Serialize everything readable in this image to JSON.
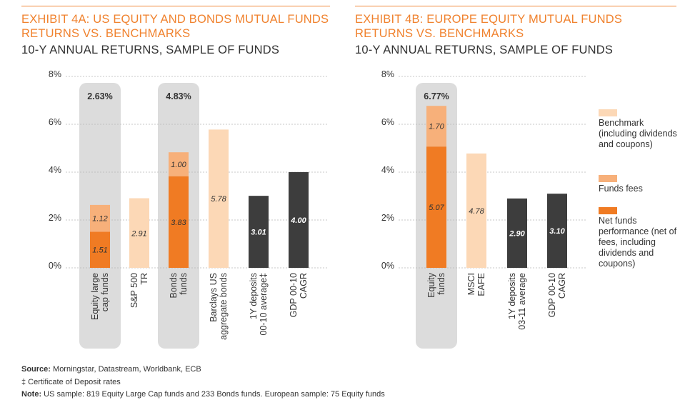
{
  "colors": {
    "benchmark": "#fcd8b6",
    "fees": "#f7b07a",
    "net": "#f07b23",
    "dark": "#3d3d3d",
    "highlight": "#dcdcdc",
    "title": "#f0822e"
  },
  "left": {
    "title_line1": "EXHIBIT 4A: US EQUITY AND BONDS MUTUAL FUNDS",
    "title_line2": "RETURNS VS. BENCHMARKS",
    "subtitle": "10-Y ANNUAL RETURNS, SAMPLE OF FUNDS"
  },
  "right": {
    "title_line1": "EXHIBIT 4B: EUROPE EQUITY MUTUAL FUNDS",
    "title_line2": "RETURNS VS. BENCHMARKS",
    "subtitle": "10-Y ANNUAL RETURNS, SAMPLE OF FUNDS"
  },
  "legend": {
    "benchmark": "Benchmark (including dividends and coupons)",
    "fees": "Funds fees",
    "net": "Net funds performance (net of fees, including dividends and coupons)"
  },
  "footer": {
    "source_label": "Source:",
    "source_text": "Morningstar, Datastream, Worldbank, ECB",
    "cd_note": "‡ Certificate of Deposit rates",
    "note_label": "Note:",
    "note_text": "US sample: 819 Equity Large Cap funds and 233 Bonds funds. European sample: 75 Equity funds"
  },
  "chart_data": [
    {
      "type": "bar",
      "title": "EXHIBIT 4A: US EQUITY AND BONDS MUTUAL FUNDS RETURNS VS. BENCHMARKS",
      "subtitle": "10-Y ANNUAL RETURNS, SAMPLE OF FUNDS",
      "ylim": [
        0,
        8
      ],
      "yticks": [
        "0%",
        "2%",
        "4%",
        "6%",
        "8%"
      ],
      "grid": true,
      "bars": [
        {
          "category": "Equity large cap funds",
          "highlight": "2.63%",
          "segments": [
            {
              "kind": "net",
              "value": 1.51,
              "label": "1.51"
            },
            {
              "kind": "fees",
              "value": 1.12,
              "label": "1.12"
            }
          ]
        },
        {
          "category": "S&P 500 TR",
          "segments": [
            {
              "kind": "benchmark",
              "value": 2.91,
              "label": "2.91"
            }
          ]
        },
        {
          "category": "Bonds funds",
          "highlight": "4.83%",
          "segments": [
            {
              "kind": "net",
              "value": 3.83,
              "label": "3.83"
            },
            {
              "kind": "fees",
              "value": 1.0,
              "label": "1.00"
            }
          ]
        },
        {
          "category": "Barclays US aggregate bonds",
          "segments": [
            {
              "kind": "benchmark",
              "value": 5.78,
              "label": "5.78"
            }
          ]
        },
        {
          "category": "1Y deposits 00-10 average‡",
          "segments": [
            {
              "kind": "dark",
              "value": 3.01,
              "label": "3.01"
            }
          ]
        },
        {
          "category": "GDP 00-10 CAGR",
          "segments": [
            {
              "kind": "dark",
              "value": 4.0,
              "label": "4.00"
            }
          ]
        }
      ]
    },
    {
      "type": "bar",
      "title": "EXHIBIT 4B: EUROPE EQUITY MUTUAL FUNDS RETURNS VS. BENCHMARKS",
      "subtitle": "10-Y ANNUAL RETURNS, SAMPLE OF FUNDS",
      "ylim": [
        0,
        8
      ],
      "yticks": [
        "0%",
        "2%",
        "4%",
        "6%",
        "8%"
      ],
      "grid": true,
      "legend": "right",
      "bars": [
        {
          "category": "Equity funds",
          "highlight": "6.77%",
          "segments": [
            {
              "kind": "net",
              "value": 5.07,
              "label": "5.07"
            },
            {
              "kind": "fees",
              "value": 1.7,
              "label": "1.70"
            }
          ]
        },
        {
          "category": "MSCI EAFE",
          "segments": [
            {
              "kind": "benchmark",
              "value": 4.78,
              "label": "4.78"
            }
          ]
        },
        {
          "category": "1Y deposits 03-11 average",
          "segments": [
            {
              "kind": "dark",
              "value": 2.9,
              "label": "2.90"
            }
          ]
        },
        {
          "category": "GDP 00-10 CAGR",
          "segments": [
            {
              "kind": "dark",
              "value": 3.1,
              "label": "3.10"
            }
          ]
        }
      ]
    }
  ]
}
